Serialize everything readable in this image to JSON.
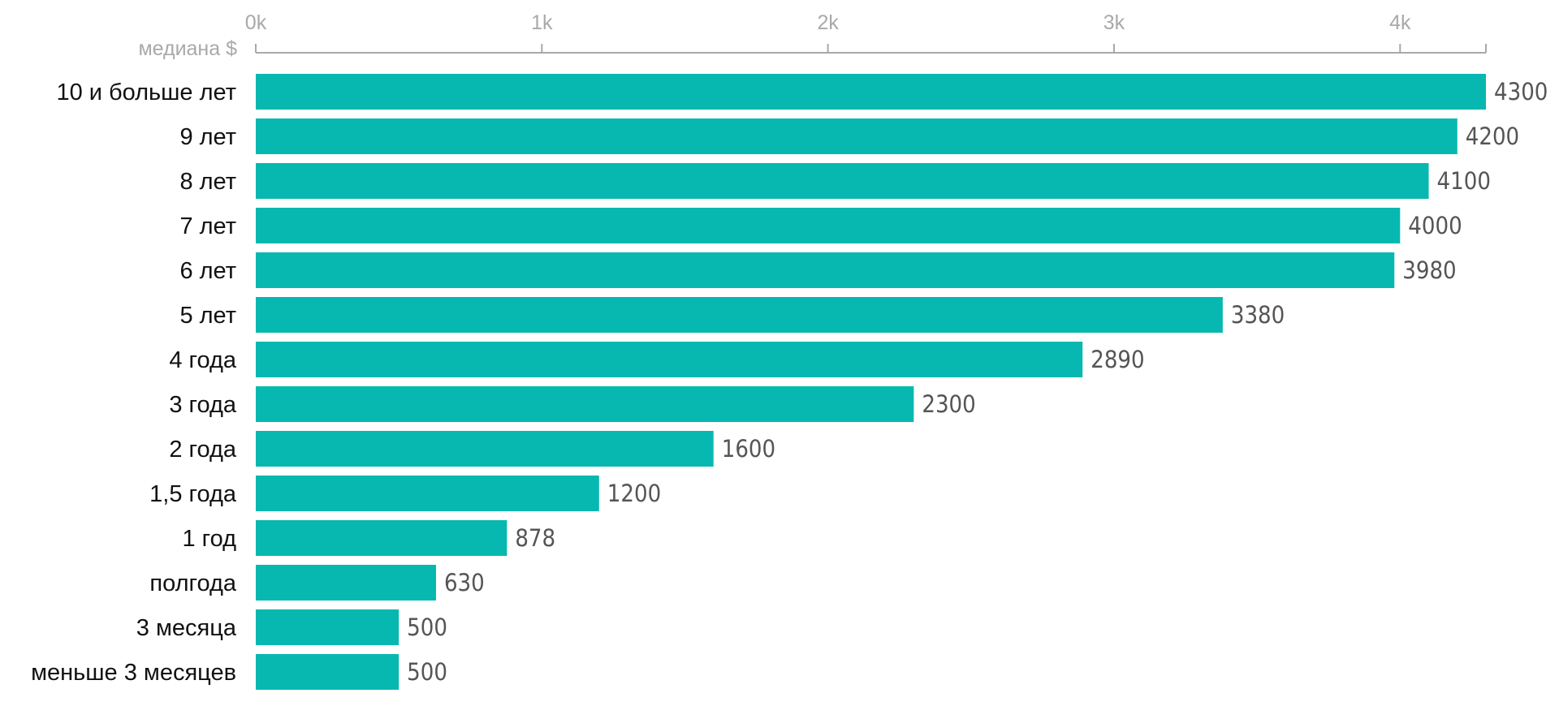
{
  "chart_data": {
    "type": "bar",
    "orientation": "horizontal",
    "xlabel": "медиана $",
    "xlim": [
      0,
      4300
    ],
    "xticks": [
      {
        "value": 0,
        "label": "0k"
      },
      {
        "value": 1000,
        "label": "1k"
      },
      {
        "value": 2000,
        "label": "2k"
      },
      {
        "value": 3000,
        "label": "3k"
      },
      {
        "value": 4000,
        "label": "4k"
      }
    ],
    "axis_position": "top",
    "grid": false,
    "bar_color": "#07b8b0",
    "categories": [
      "10 и больше лет",
      "9 лет",
      "8 лет",
      "7 лет",
      "6 лет",
      "5 лет",
      "4 года",
      "3 года",
      "2 года",
      "1,5 года",
      "1 год",
      "полгода",
      "3 месяца",
      "меньше 3 месяцев"
    ],
    "values": [
      4300,
      4200,
      4100,
      4000,
      3980,
      3380,
      2890,
      2300,
      1600,
      1200,
      878,
      630,
      500,
      500
    ],
    "data_labels": [
      "4300",
      "4200",
      "4100",
      "4000",
      "3980",
      "3380",
      "2890",
      "2300",
      "1600",
      "1200",
      "878",
      "630",
      "500",
      "500"
    ]
  }
}
